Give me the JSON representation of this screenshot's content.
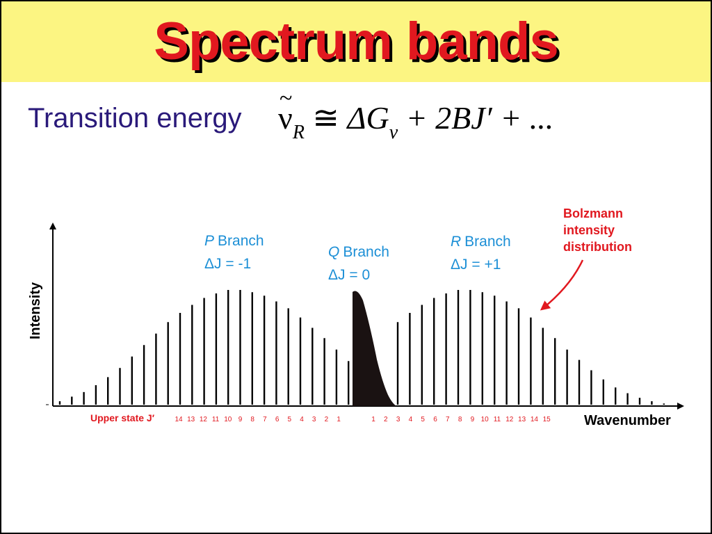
{
  "slide": {
    "title": "Spectrum bands",
    "subtitle": "Transition energy",
    "formula": {
      "nu": "ν",
      "nu_sub": "R",
      "approx": "≅",
      "delta_g": "ΔG",
      "g_sub": "v",
      "rest": "+ 2BJ′ + ..."
    }
  },
  "chart_data": {
    "type": "bar",
    "xlabel": "Wavenumber",
    "ylabel": "Intensity",
    "x_axis_prefix": "Upper state J′",
    "grid": false,
    "branches": [
      {
        "name": "P Branch",
        "letter": "P",
        "word": "Branch",
        "rule": "ΔJ = -1",
        "j_labels": [
          "14",
          "13",
          "12",
          "11",
          "10",
          "9",
          "8",
          "7",
          "6",
          "5",
          "4",
          "3",
          "2",
          "1"
        ],
        "relative_intensity": [
          0.03,
          0.07,
          0.11,
          0.17,
          0.24,
          0.32,
          0.42,
          0.52,
          0.62,
          0.72,
          0.8,
          0.87,
          0.93,
          0.97,
          1.0,
          1.0,
          0.98,
          0.95,
          0.9,
          0.84,
          0.76,
          0.67,
          0.58,
          0.48,
          0.38
        ]
      },
      {
        "name": "Q Branch",
        "letter": "Q",
        "word": "Branch",
        "rule": "ΔJ = 0"
      },
      {
        "name": "R Branch",
        "letter": "R",
        "word": "Branch",
        "rule": "ΔJ = +1",
        "j_labels": [
          "1",
          "2",
          "3",
          "4",
          "5",
          "6",
          "7",
          "8",
          "9",
          "10",
          "11",
          "12",
          "13",
          "14",
          "15"
        ],
        "relative_intensity": [
          0.72,
          0.8,
          0.87,
          0.93,
          0.97,
          1.0,
          1.0,
          0.98,
          0.95,
          0.9,
          0.84,
          0.76,
          0.67,
          0.58,
          0.48,
          0.39,
          0.3,
          0.22,
          0.15,
          0.1,
          0.06,
          0.03,
          0.01
        ]
      }
    ],
    "annotation": {
      "lines": [
        "Bolzmann",
        "intensity",
        "distribution"
      ],
      "color": "#e1181f"
    },
    "colors": {
      "branch_labels": "#1c8fd6",
      "j_labels": "#e1181f",
      "lines": "#000000"
    }
  }
}
